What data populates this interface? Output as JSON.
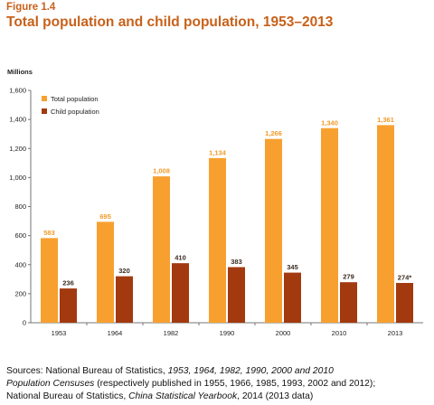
{
  "figure": {
    "label": "Figure 1.4",
    "title": "Total population and child population, 1953–2013"
  },
  "chart_data": {
    "type": "bar",
    "categories": [
      "1953",
      "1964",
      "1982",
      "1990",
      "2000",
      "2010",
      "2013"
    ],
    "series": [
      {
        "name": "Total population",
        "values": [
          583,
          695,
          1008,
          1134,
          1266,
          1340,
          1361
        ],
        "labels": [
          "583",
          "695",
          "1,008",
          "1,134",
          "1,266",
          "1,340",
          "1,361"
        ],
        "color": "#f7a030"
      },
      {
        "name": "Child population",
        "values": [
          236,
          320,
          410,
          383,
          345,
          279,
          274
        ],
        "labels": [
          "236",
          "320",
          "410",
          "383",
          "345",
          "279",
          "274*"
        ],
        "color": "#a3390f"
      }
    ],
    "ylabel": "Millions",
    "ylim": [
      0,
      1600
    ],
    "yticks": [
      0,
      200,
      400,
      600,
      800,
      1000,
      1200,
      1400,
      1600
    ],
    "ytick_labels": [
      "0",
      "200",
      "400",
      "600",
      "800",
      "1,000",
      "1,200",
      "1,400",
      "1,600"
    ],
    "legend_position": "top-left",
    "grid": false
  },
  "sources": {
    "line1_prefix": "Sources: National Bureau of Statistics, ",
    "line1_italic": "1953, 1964, 1982, 1990, 2000 and 2010",
    "line2_italic": "Population Censuses",
    "line2_rest": " (respectively published in 1955, 1966, 1985, 1993, 2002 and 2012);",
    "line3_prefix": "National Bureau of Statistics, ",
    "line3_italic": "China Statistical Yearbook",
    "line3_rest": ", 2014 (2013 data)"
  }
}
